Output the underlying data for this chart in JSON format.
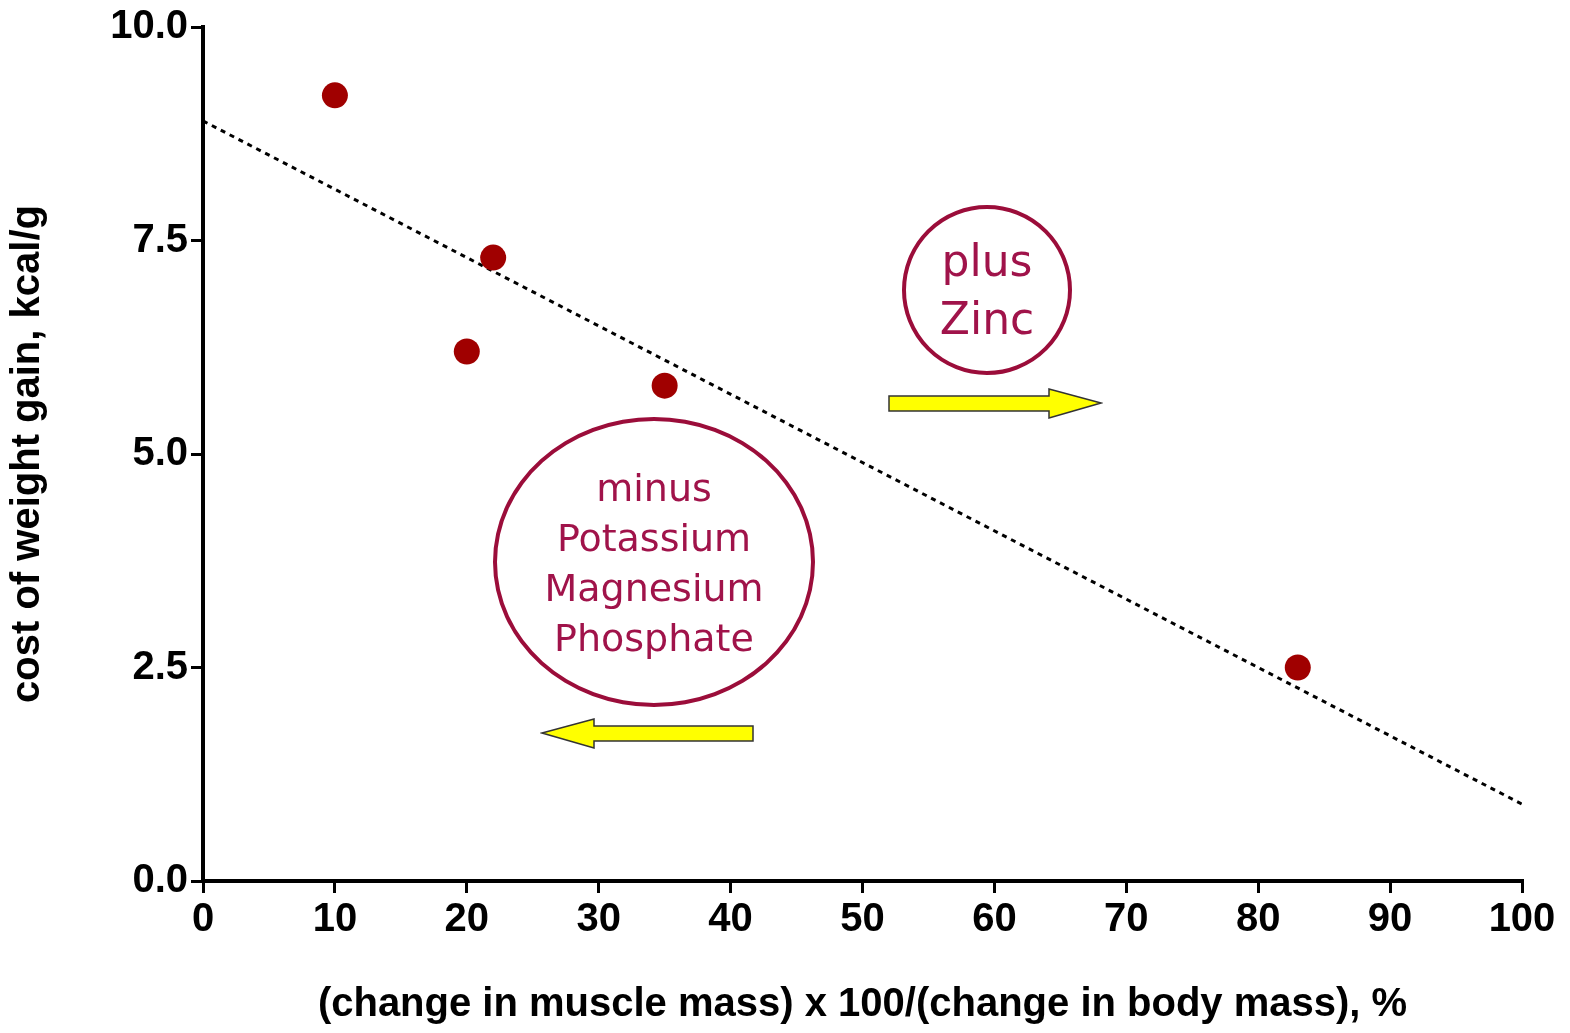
{
  "chart_data": {
    "type": "scatter",
    "xlabel": "(change in muscle mass) x 100/(change in body mass), %",
    "ylabel": "cost of weight gain, kcal/g",
    "xlim": [
      0,
      100
    ],
    "xticks": [
      0,
      10,
      20,
      30,
      40,
      50,
      60,
      70,
      80,
      90,
      100
    ],
    "ylim": [
      0,
      10
    ],
    "yticks": [
      {
        "value": 0,
        "label": "0.0"
      },
      {
        "value": 2.5,
        "label": "2.5"
      },
      {
        "value": 5,
        "label": "5.0"
      },
      {
        "value": 7.5,
        "label": "7.5"
      },
      {
        "value": 10,
        "label": "10.0"
      }
    ],
    "grid": false,
    "legend": false,
    "marker": "circle",
    "annotations": [
      "plus\nZinc",
      "minus\nPotassium\nMagnesium\nPhosphate"
    ],
    "series": [
      {
        "type": "scatter",
        "color": "#a00000",
        "x": [
          10,
          20,
          22,
          35,
          83
        ],
        "values": [
          9.2,
          6.2,
          7.3,
          5.8,
          2.5
        ]
      },
      {
        "type": "line",
        "color": "#000000",
        "line_style": "dotted",
        "marker": "none",
        "x": [
          0,
          100
        ],
        "values": [
          8.9,
          0.9
        ]
      }
    ]
  }
}
